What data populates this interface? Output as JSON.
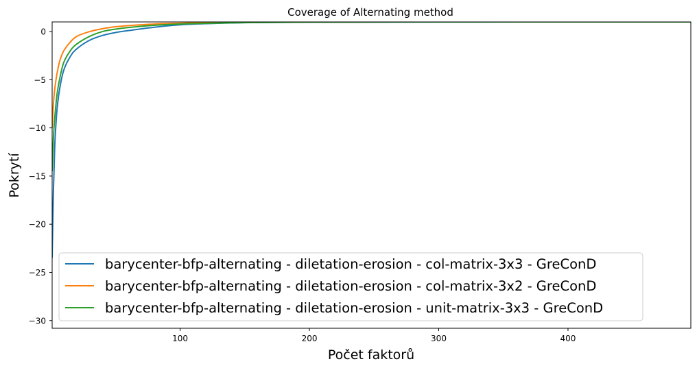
{
  "chart_data": {
    "type": "line",
    "title": "Coverage of Alternating method",
    "xlabel": "Počet faktorů",
    "ylabel": "Pokrytí",
    "xlim": [
      1,
      495
    ],
    "ylim": [
      -30.8,
      1.0
    ],
    "xticks": [
      100,
      200,
      300,
      400
    ],
    "xtick_labels": [
      "100",
      "200",
      "300",
      "400"
    ],
    "yticks": [
      0,
      -5,
      -10,
      -15,
      -20,
      -25,
      -30
    ],
    "ytick_labels": [
      "0",
      "−5",
      "−10",
      "−15",
      "−20",
      "−25",
      "−30"
    ],
    "grid": false,
    "legend_position": "lower-left",
    "series": [
      {
        "name": "barycenter-bfp-alternating - diletation-erosion - col-matrix-3x3 - GreConD",
        "color": "#1f77b4",
        "x": [
          1,
          2,
          3,
          4,
          5,
          7,
          10,
          15,
          20,
          30,
          40,
          50,
          60,
          80,
          100,
          120,
          150,
          200,
          300,
          400,
          495
        ],
        "y": [
          -23.5,
          -16.5,
          -12.0,
          -9.5,
          -7.8,
          -5.8,
          -4.0,
          -2.6,
          -1.8,
          -0.9,
          -0.4,
          -0.1,
          0.1,
          0.45,
          0.7,
          0.82,
          0.92,
          0.97,
          0.99,
          1.0,
          1.0
        ]
      },
      {
        "name": "barycenter-bfp-alternating - diletation-erosion - col-matrix-3x2 - GreConD",
        "color": "#ff7f0e",
        "x": [
          1,
          2,
          3,
          4,
          5,
          7,
          10,
          15,
          20,
          30,
          40,
          50,
          60,
          80,
          100,
          120,
          150,
          200,
          300,
          400,
          495
        ],
        "y": [
          -10.0,
          -7.5,
          -6.0,
          -5.0,
          -4.2,
          -3.0,
          -2.0,
          -1.1,
          -0.5,
          0.0,
          0.3,
          0.5,
          0.62,
          0.78,
          0.87,
          0.92,
          0.96,
          0.99,
          1.0,
          1.0,
          1.0
        ]
      },
      {
        "name": "barycenter-bfp-alternating - diletation-erosion - unit-matrix-3x3 - GreConD",
        "color": "#2ca02c",
        "x": [
          1,
          2,
          3,
          4,
          5,
          7,
          10,
          15,
          20,
          30,
          40,
          50,
          60,
          80,
          100,
          120,
          150,
          200,
          300,
          400,
          495
        ],
        "y": [
          -14.5,
          -11.0,
          -9.0,
          -7.5,
          -6.3,
          -4.8,
          -3.2,
          -2.0,
          -1.3,
          -0.5,
          0.0,
          0.25,
          0.42,
          0.65,
          0.78,
          0.86,
          0.93,
          0.98,
          1.0,
          1.0,
          1.0
        ]
      }
    ]
  }
}
